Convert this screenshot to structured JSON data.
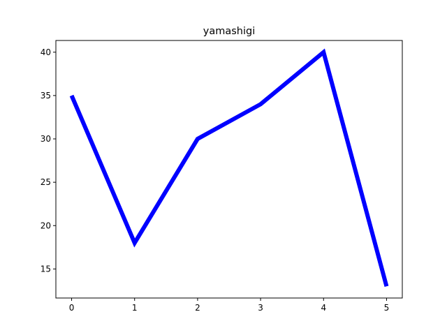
{
  "chart_data": {
    "type": "line",
    "title": "yamashigi",
    "xlabel": "",
    "ylabel": "",
    "x": [
      0,
      1,
      2,
      3,
      4,
      5
    ],
    "series": [
      {
        "values": [
          35,
          18,
          30,
          34,
          40,
          13
        ],
        "color": "#0000ff"
      }
    ],
    "xlim": [
      -0.25,
      5.25
    ],
    "ylim": [
      11.65,
      41.35
    ],
    "xticks": [
      "0",
      "1",
      "2",
      "3",
      "4",
      "5"
    ],
    "yticks": [
      "15",
      "20",
      "25",
      "30",
      "35",
      "40"
    ],
    "grid": false,
    "legend": "none"
  }
}
